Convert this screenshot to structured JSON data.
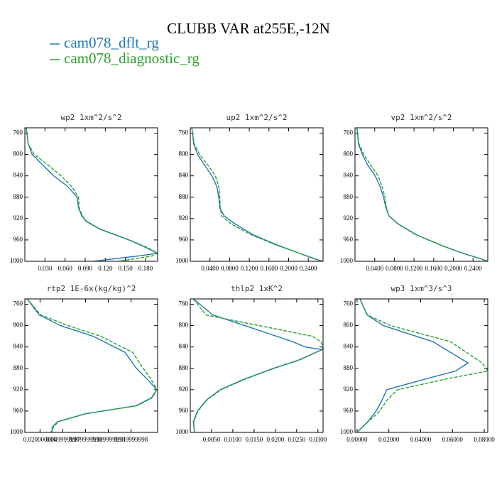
{
  "title": "CLUBB VAR at255E,-12N",
  "chart_data": [
    {
      "type": "line",
      "title": "wp2   1xm^2/s^2",
      "y": [
        750,
        780,
        800,
        820,
        840,
        860,
        880,
        900,
        915,
        925,
        940,
        960,
        975,
        985,
        990,
        1000
      ],
      "series": [
        {
          "name": "cam078_dflt_rg",
          "color": "#1f77b4",
          "dash": false,
          "values": [
            0.002,
            0.005,
            0.011,
            0.027,
            0.043,
            0.064,
            0.078,
            0.08,
            0.085,
            0.091,
            0.112,
            0.155,
            0.182,
            0.198,
            0.17,
            0.102
          ]
        },
        {
          "name": "cam078_diagnostic_rg",
          "color": "#2ca02c",
          "dash": true,
          "values": [
            0.002,
            0.005,
            0.014,
            0.035,
            0.054,
            0.07,
            0.08,
            0.081,
            0.086,
            0.092,
            0.113,
            0.156,
            0.184,
            0.198,
            0.19,
            0.14
          ]
        }
      ],
      "xlim": [
        0,
        0.198
      ],
      "xticks": [
        {
          "value": 0.03,
          "label": "0.030"
        },
        {
          "value": 0.06,
          "label": "0.060"
        },
        {
          "value": 0.09,
          "label": "0.090"
        },
        {
          "value": 0.12,
          "label": "0.120"
        },
        {
          "value": 0.15,
          "label": "0.150"
        },
        {
          "value": 0.18,
          "label": "0.180"
        }
      ],
      "ylim": [
        1000,
        750
      ],
      "yticks": [
        760,
        800,
        840,
        880,
        920,
        960,
        1000
      ]
    },
    {
      "type": "line",
      "title": "up2   1xm^2/s^2",
      "y": [
        750,
        780,
        800,
        820,
        840,
        860,
        880,
        900,
        915,
        930,
        950,
        970,
        985,
        995,
        1000
      ],
      "series": [
        {
          "name": "cam078_dflt_rg",
          "color": "#1f77b4",
          "dash": false,
          "values": [
            0.003,
            0.007,
            0.015,
            0.029,
            0.044,
            0.054,
            0.058,
            0.06,
            0.069,
            0.091,
            0.127,
            0.178,
            0.222,
            0.251,
            0.269
          ]
        },
        {
          "name": "cam078_diagnostic_rg",
          "color": "#2ca02c",
          "dash": true,
          "values": [
            0.003,
            0.008,
            0.019,
            0.036,
            0.051,
            0.058,
            0.06,
            0.061,
            0.064,
            0.083,
            0.123,
            0.176,
            0.222,
            0.253,
            0.27
          ]
        }
      ],
      "xlim": [
        0,
        0.27
      ],
      "xticks": [
        {
          "value": 0.04,
          "label": "0.0400"
        },
        {
          "value": 0.08,
          "label": "0.0800"
        },
        {
          "value": 0.12,
          "label": "0.1200"
        },
        {
          "value": 0.16,
          "label": "0.1600"
        },
        {
          "value": 0.2,
          "label": "0.2000"
        },
        {
          "value": 0.24,
          "label": "0.2400"
        }
      ],
      "ylim": [
        1000,
        750
      ],
      "yticks": [
        760,
        800,
        840,
        880,
        920,
        960,
        1000
      ]
    },
    {
      "type": "line",
      "title": "vp2   1xm^2/s^2",
      "y": [
        750,
        780,
        800,
        820,
        840,
        860,
        880,
        900,
        915,
        930,
        950,
        970,
        985,
        995,
        1000
      ],
      "series": [
        {
          "name": "cam078_dflt_rg",
          "color": "#1f77b4",
          "dash": false,
          "values": [
            0.004,
            0.007,
            0.015,
            0.026,
            0.041,
            0.051,
            0.058,
            0.063,
            0.069,
            0.088,
            0.124,
            0.175,
            0.219,
            0.255,
            0.27
          ]
        },
        {
          "name": "cam078_diagnostic_rg",
          "color": "#2ca02c",
          "dash": true,
          "values": [
            0.004,
            0.008,
            0.018,
            0.032,
            0.047,
            0.055,
            0.061,
            0.064,
            0.069,
            0.087,
            0.123,
            0.175,
            0.219,
            0.255,
            0.27
          ]
        }
      ],
      "xlim": [
        0,
        0.27
      ],
      "xticks": [
        {
          "value": 0.04,
          "label": "0.0400"
        },
        {
          "value": 0.08,
          "label": "0.0800"
        },
        {
          "value": 0.12,
          "label": "0.1200"
        },
        {
          "value": 0.16,
          "label": "0.1600"
        },
        {
          "value": 0.2,
          "label": "0.2000"
        },
        {
          "value": 0.24,
          "label": "0.2400"
        }
      ],
      "ylim": [
        1000,
        750
      ],
      "yticks": [
        760,
        800,
        840,
        880,
        920,
        960,
        1000
      ]
    },
    {
      "type": "line",
      "title": "rtp2   1E-6x(kg/kg)^2",
      "y": [
        750,
        780,
        800,
        820,
        850,
        880,
        900,
        920,
        935,
        950,
        965,
        980,
        990,
        1000
      ],
      "series": [
        {
          "name": "cam078_dflt_rg",
          "color": "#1f77b4",
          "dash": false,
          "values": [
            0.003,
            0.019,
            0.047,
            0.09,
            0.132,
            0.147,
            0.161,
            0.174,
            0.167,
            0.147,
            0.08,
            0.043,
            0.036,
            0.036
          ]
        },
        {
          "name": "cam078_diagnostic_rg",
          "color": "#2ca02c",
          "dash": true,
          "values": [
            0.003,
            0.021,
            0.057,
            0.1,
            0.142,
            0.156,
            0.166,
            0.174,
            0.168,
            0.148,
            0.081,
            0.044,
            0.038,
            0.034
          ]
        }
      ],
      "xlim": [
        0,
        0.175
      ],
      "xticks": [
        {
          "value": 0.02,
          "label": "0.020000000"
        },
        {
          "value": 0.05,
          "label": "0.049999999"
        },
        {
          "value": 0.08,
          "label": "0.079999998"
        },
        {
          "value": 0.11,
          "label": "0.109999998"
        },
        {
          "value": 0.14,
          "label": "0.139999998"
        }
      ],
      "ylim": [
        1000,
        750
      ],
      "yticks": [
        760,
        800,
        840,
        880,
        920,
        960,
        1000
      ]
    },
    {
      "type": "line",
      "title": "thlp2   1xK^2",
      "y": [
        750,
        780,
        800,
        820,
        830,
        840,
        845,
        865,
        880,
        900,
        920,
        940,
        960,
        980,
        1000
      ],
      "series": [
        {
          "name": "cam078_dflt_rg",
          "color": "#1f77b4",
          "dash": false,
          "values": [
            0.0007,
            0.0053,
            0.0128,
            0.0203,
            0.024,
            0.027,
            0.031,
            0.0253,
            0.0195,
            0.0128,
            0.007,
            0.0037,
            0.0017,
            0.0007,
            0.001
          ]
        },
        {
          "name": "cam078_diagnostic_rg",
          "color": "#2ca02c",
          "dash": true,
          "values": [
            0.0007,
            0.0037,
            0.0162,
            0.0287,
            0.0307,
            0.0312,
            0.031,
            0.0255,
            0.0197,
            0.013,
            0.0072,
            0.0038,
            0.0018,
            0.0008,
            0.001
          ]
        }
      ],
      "xlim": [
        0,
        0.0312
      ],
      "xticks": [
        {
          "value": 0.005,
          "label": "0.0050"
        },
        {
          "value": 0.01,
          "label": "0.0100"
        },
        {
          "value": 0.015,
          "label": "0.0150"
        },
        {
          "value": 0.02,
          "label": "0.0200"
        },
        {
          "value": 0.025,
          "label": "0.0250"
        },
        {
          "value": 0.03,
          "label": "0.0300"
        }
      ],
      "ylim": [
        1000,
        750
      ],
      "yticks": [
        760,
        800,
        840,
        880,
        920,
        960,
        1000
      ]
    },
    {
      "type": "line",
      "title": "wp3   1xm^3/s^3",
      "y": [
        750,
        780,
        800,
        830,
        870,
        885,
        900,
        920,
        940,
        960,
        980,
        1000
      ],
      "series": [
        {
          "name": "cam078_dflt_rg",
          "color": "#1f77b4",
          "dash": false,
          "values": [
            0.0018,
            0.0063,
            0.0165,
            0.0476,
            0.0698,
            0.062,
            0.043,
            0.0187,
            0.0156,
            0.012,
            0.0067,
            0
          ]
        },
        {
          "name": "cam078_diagnostic_rg",
          "color": "#2ca02c",
          "dash": true,
          "values": [
            0.0018,
            0.0065,
            0.021,
            0.0587,
            0.0787,
            0.0822,
            0.056,
            0.0254,
            0.0187,
            0.0143,
            0.007,
            0
          ]
        }
      ],
      "xlim": [
        -0.0013,
        0.0822
      ],
      "xticks": [
        {
          "value": 0,
          "label": "0.00000"
        },
        {
          "value": 0.02,
          "label": "0.02000"
        },
        {
          "value": 0.04,
          "label": "0.04000"
        },
        {
          "value": 0.06,
          "label": "0.06000"
        },
        {
          "value": 0.08,
          "label": "0.08000"
        }
      ],
      "ylim": [
        1000,
        750
      ],
      "yticks": [
        760,
        800,
        840,
        880,
        920,
        960,
        1000
      ]
    }
  ]
}
